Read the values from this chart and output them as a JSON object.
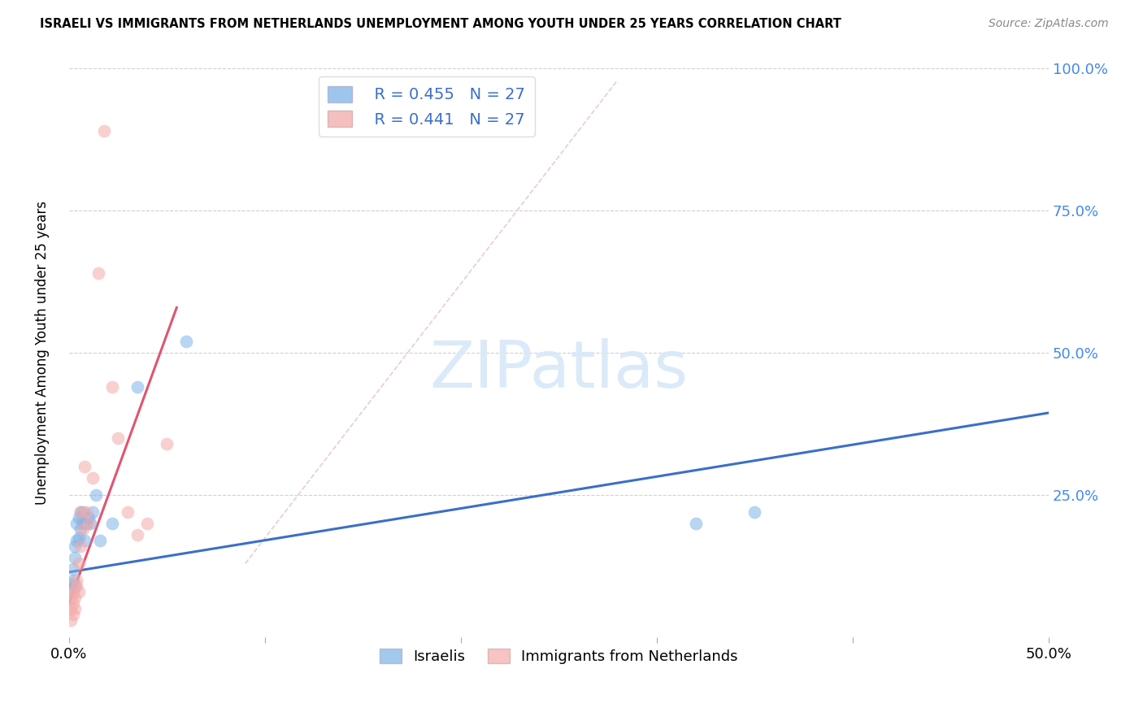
{
  "title": "ISRAELI VS IMMIGRANTS FROM NETHERLANDS UNEMPLOYMENT AMONG YOUTH UNDER 25 YEARS CORRELATION CHART",
  "source": "Source: ZipAtlas.com",
  "ylabel": "Unemployment Among Youth under 25 years",
  "xlim": [
    0.0,
    0.5
  ],
  "ylim": [
    0.0,
    1.0
  ],
  "xtick_vals": [
    0.0,
    0.1,
    0.2,
    0.3,
    0.4,
    0.5
  ],
  "xtick_labels": [
    "0.0%",
    "",
    "",
    "",
    "",
    "50.0%"
  ],
  "ytick_vals": [
    0.0,
    0.25,
    0.5,
    0.75,
    1.0
  ],
  "ytick_labels_right": [
    "",
    "25.0%",
    "50.0%",
    "75.0%",
    "100.0%"
  ],
  "legend_r_blue": "R = 0.455",
  "legend_n_blue": "N = 27",
  "legend_r_pink": "R = 0.441",
  "legend_n_pink": "N = 27",
  "legend_label_blue": "Israelis",
  "legend_label_pink": "Immigrants from Netherlands",
  "color_blue": "#7EB3E8",
  "color_pink": "#F4AAAA",
  "color_blue_line": "#3B6FC7",
  "color_pink_line": "#E05570",
  "color_diag_line": "#E8C8C8",
  "watermark": "ZIPatlas",
  "israelis_x": [
    0.001,
    0.001,
    0.002,
    0.002,
    0.003,
    0.003,
    0.003,
    0.004,
    0.004,
    0.005,
    0.005,
    0.006,
    0.006,
    0.007,
    0.007,
    0.008,
    0.009,
    0.01,
    0.011,
    0.012,
    0.014,
    0.016,
    0.022,
    0.035,
    0.06,
    0.32,
    0.35
  ],
  "israelis_y": [
    0.085,
    0.095,
    0.1,
    0.12,
    0.14,
    0.16,
    0.09,
    0.17,
    0.2,
    0.175,
    0.21,
    0.19,
    0.22,
    0.2,
    0.22,
    0.17,
    0.2,
    0.21,
    0.2,
    0.22,
    0.25,
    0.17,
    0.2,
    0.44,
    0.52,
    0.2,
    0.22
  ],
  "netherlands_x": [
    0.001,
    0.001,
    0.001,
    0.002,
    0.002,
    0.002,
    0.003,
    0.003,
    0.004,
    0.004,
    0.005,
    0.005,
    0.006,
    0.006,
    0.007,
    0.008,
    0.009,
    0.01,
    0.012,
    0.015,
    0.018,
    0.022,
    0.025,
    0.03,
    0.035,
    0.04,
    0.05
  ],
  "netherlands_y": [
    0.03,
    0.05,
    0.07,
    0.04,
    0.06,
    0.08,
    0.05,
    0.07,
    0.1,
    0.09,
    0.08,
    0.13,
    0.22,
    0.16,
    0.19,
    0.3,
    0.22,
    0.2,
    0.28,
    0.64,
    0.89,
    0.44,
    0.35,
    0.22,
    0.18,
    0.2,
    0.34
  ],
  "blue_line_x0": 0.0,
  "blue_line_y0": 0.115,
  "blue_line_x1": 0.5,
  "blue_line_y1": 0.395,
  "pink_line_x0": 0.0,
  "pink_line_y0": 0.06,
  "pink_line_x1": 0.055,
  "pink_line_y1": 0.58,
  "diag_line_x0": 0.09,
  "diag_line_y0": 0.13,
  "diag_line_x1": 0.28,
  "diag_line_y1": 0.98
}
